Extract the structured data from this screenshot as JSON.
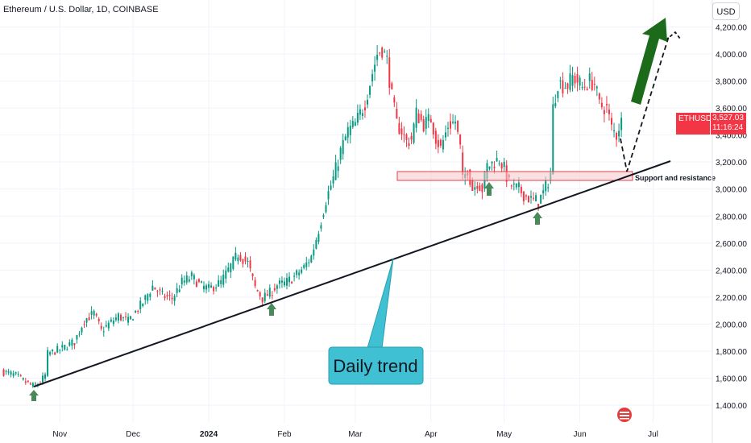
{
  "header": {
    "title": "Ethereum / U.S. Dollar, 1D, COINBASE",
    "currency_button": "USD"
  },
  "price_label": {
    "symbol": "ETHUSD",
    "price": "3,527.03",
    "countdown": "11:16:24",
    "color": "#f23645"
  },
  "colors": {
    "up": "#089981",
    "down": "#f23645",
    "trendline": "#131722",
    "arrow_up": "#1b6b1b",
    "marker": "#4a8a5a",
    "annotation_bg": "#3fc1d3",
    "zone_fill": "#f7c6c9",
    "zone_border": "#e0414f"
  },
  "annotations": {
    "daily_trend": "Daily trend",
    "support_resistance": "Support and resistance"
  },
  "chart_data": {
    "type": "candlestick",
    "ylim": [
      1300,
      4300
    ],
    "y_ticks": [
      1400,
      1600,
      1800,
      2000,
      2200,
      2400,
      2600,
      2800,
      3000,
      3200,
      3400,
      3600,
      3800,
      4000,
      4200
    ],
    "y_tick_labels": [
      "1,400.00",
      "1,600.00",
      "1,800.00",
      "2,000.00",
      "2,200.00",
      "2,400.00",
      "2,600.00",
      "2,800.00",
      "3,000.00",
      "3,200.00",
      "3,400.00",
      "3,600.00",
      "3,800.00",
      "4,000.00",
      "4,200.00"
    ],
    "x_ticks": [
      {
        "label": "Nov",
        "bold": false
      },
      {
        "label": "Dec",
        "bold": false
      },
      {
        "label": "2024",
        "bold": true
      },
      {
        "label": "Feb",
        "bold": false
      },
      {
        "label": "Mar",
        "bold": false
      },
      {
        "label": "Apr",
        "bold": false
      },
      {
        "label": "May",
        "bold": false
      },
      {
        "label": "Jun",
        "bold": false
      },
      {
        "label": "Jul",
        "bold": false
      }
    ],
    "x_tick_index": [
      24,
      54,
      85,
      116,
      145,
      176,
      206,
      237,
      267
    ],
    "path_anchors": [
      [
        0,
        1650
      ],
      [
        6,
        1620
      ],
      [
        10,
        1570
      ],
      [
        13,
        1540
      ],
      [
        16,
        1570
      ],
      [
        18,
        1620
      ],
      [
        19,
        1780
      ],
      [
        22,
        1800
      ],
      [
        25,
        1820
      ],
      [
        30,
        1870
      ],
      [
        34,
        2030
      ],
      [
        38,
        2080
      ],
      [
        41,
        1950
      ],
      [
        44,
        2000
      ],
      [
        48,
        2060
      ],
      [
        52,
        2020
      ],
      [
        58,
        2160
      ],
      [
        62,
        2280
      ],
      [
        66,
        2210
      ],
      [
        70,
        2190
      ],
      [
        74,
        2310
      ],
      [
        78,
        2350
      ],
      [
        82,
        2280
      ],
      [
        85,
        2260
      ],
      [
        87,
        2280
      ],
      [
        90,
        2310
      ],
      [
        94,
        2430
      ],
      [
        97,
        2520
      ],
      [
        101,
        2450
      ],
      [
        104,
        2270
      ],
      [
        107,
        2190
      ],
      [
        110,
        2230
      ],
      [
        113,
        2290
      ],
      [
        116,
        2300
      ],
      [
        120,
        2350
      ],
      [
        124,
        2420
      ],
      [
        127,
        2500
      ],
      [
        130,
        2700
      ],
      [
        133,
        2920
      ],
      [
        136,
        3080
      ],
      [
        139,
        3280
      ],
      [
        142,
        3430
      ],
      [
        145,
        3480
      ],
      [
        149,
        3640
      ],
      [
        152,
        3860
      ],
      [
        154,
        4000
      ],
      [
        156,
        4040
      ],
      [
        158,
        3950
      ],
      [
        160,
        3680
      ],
      [
        162,
        3480
      ],
      [
        164,
        3430
      ],
      [
        166,
        3350
      ],
      [
        168,
        3370
      ],
      [
        170,
        3560
      ],
      [
        173,
        3480
      ],
      [
        176,
        3520
      ],
      [
        178,
        3380
      ],
      [
        180,
        3300
      ],
      [
        183,
        3470
      ],
      [
        186,
        3500
      ],
      [
        188,
        3300
      ],
      [
        189,
        3060
      ],
      [
        191,
        3150
      ],
      [
        193,
        3000
      ],
      [
        195,
        3050
      ],
      [
        197,
        3000
      ],
      [
        199,
        3170
      ],
      [
        202,
        3200
      ],
      [
        204,
        3220
      ],
      [
        206,
        3150
      ],
      [
        208,
        3040
      ],
      [
        210,
        3010
      ],
      [
        212,
        3000
      ],
      [
        214,
        2960
      ],
      [
        217,
        2920
      ],
      [
        220,
        2910
      ],
      [
        222,
        2970
      ],
      [
        224,
        3060
      ],
      [
        225,
        3120
      ],
      [
        226,
        3600
      ],
      [
        228,
        3790
      ],
      [
        230,
        3770
      ],
      [
        232,
        3770
      ],
      [
        234,
        3830
      ],
      [
        236,
        3800
      ],
      [
        238,
        3750
      ],
      [
        241,
        3800
      ],
      [
        243,
        3780
      ],
      [
        245,
        3620
      ],
      [
        248,
        3600
      ],
      [
        250,
        3450
      ],
      [
        252,
        3400
      ],
      [
        254,
        3530
      ]
    ],
    "last_price": 3527.03
  }
}
